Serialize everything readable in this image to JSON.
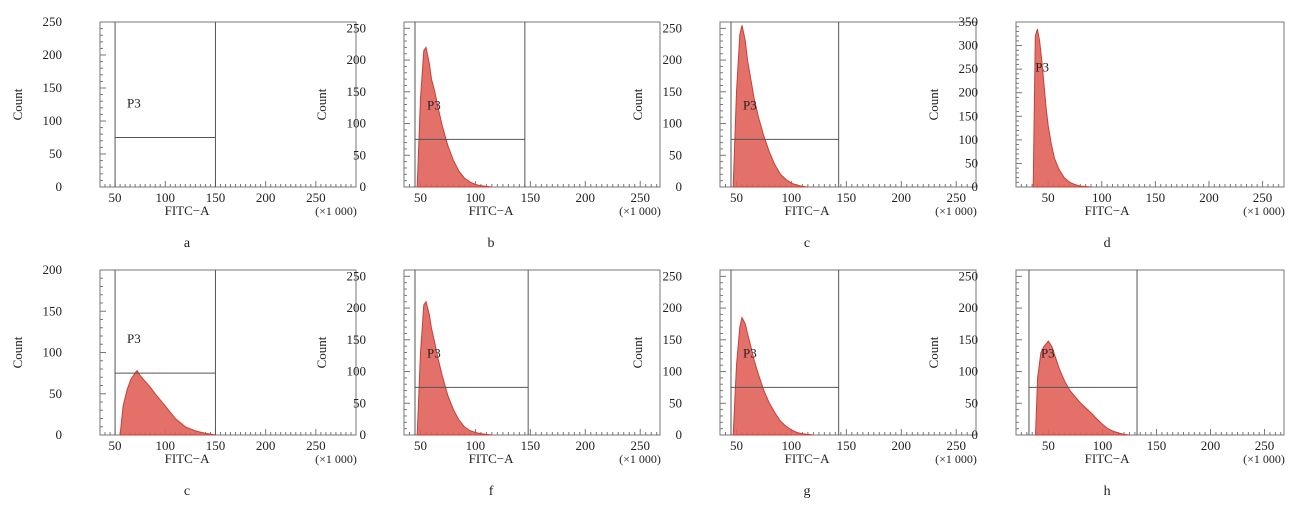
{
  "common": {
    "xlabel": "FITC−A",
    "ylabel": "Count",
    "x_unit": "(×1 000)",
    "gate_label": "P3",
    "fill_color": "#e0625a",
    "line_color": "#c24238",
    "axis_color": "#777777",
    "gate_color": "#555555"
  },
  "chart_data": [
    {
      "type": "area",
      "caption": "a",
      "xticks": [
        50,
        100,
        150,
        200,
        250
      ],
      "xlim": [
        35,
        290
      ],
      "yticks": [
        0,
        50,
        100,
        150,
        200,
        250
      ],
      "ylim": [
        0,
        250
      ],
      "gate": {
        "x0": 50,
        "x1": 150,
        "y": 75
      },
      "x": [],
      "y": []
    },
    {
      "type": "area",
      "caption": "b",
      "xticks": [
        50,
        100,
        150,
        200,
        250
      ],
      "xlim": [
        35,
        268
      ],
      "yticks": [
        0,
        50,
        100,
        150,
        200,
        250
      ],
      "ylim": [
        0,
        260
      ],
      "gate": {
        "x0": 45,
        "x1": 145,
        "y": 75
      },
      "x": [
        47,
        50,
        53,
        55,
        58,
        60,
        63,
        66,
        70,
        75,
        80,
        85,
        90,
        95,
        100,
        105,
        110,
        115
      ],
      "y": [
        0,
        140,
        215,
        220,
        195,
        170,
        150,
        125,
        95,
        65,
        42,
        25,
        14,
        8,
        4,
        2,
        1,
        0
      ]
    },
    {
      "type": "area",
      "caption": "c",
      "xticks": [
        50,
        100,
        150,
        200,
        250
      ],
      "xlim": [
        35,
        268
      ],
      "yticks": [
        0,
        50,
        100,
        150,
        200,
        250
      ],
      "ylim": [
        0,
        260
      ],
      "gate": {
        "x0": 45,
        "x1": 143,
        "y": 75
      },
      "x": [
        47,
        50,
        53,
        55,
        58,
        60,
        63,
        66,
        70,
        75,
        80,
        85,
        90,
        95,
        100,
        105,
        110,
        115
      ],
      "y": [
        0,
        150,
        240,
        255,
        230,
        200,
        170,
        140,
        110,
        80,
        55,
        35,
        20,
        12,
        6,
        3,
        1,
        0
      ]
    },
    {
      "type": "area",
      "caption": "d",
      "xticks": [
        50,
        100,
        150,
        200,
        250
      ],
      "xlim": [
        20,
        270
      ],
      "yticks": [
        0,
        50,
        100,
        150,
        200,
        250,
        300,
        350
      ],
      "ylim": [
        0,
        350
      ],
      "gate": null,
      "x": [
        36,
        38,
        40,
        42,
        44,
        46,
        48,
        50,
        53,
        56,
        60,
        65,
        70,
        75,
        80,
        85,
        90
      ],
      "y": [
        0,
        320,
        335,
        310,
        270,
        220,
        170,
        130,
        90,
        60,
        38,
        20,
        10,
        5,
        2,
        1,
        0
      ]
    },
    {
      "type": "area",
      "caption": "c",
      "xticks": [
        50,
        100,
        150,
        200,
        250
      ],
      "xlim": [
        35,
        290
      ],
      "yticks": [
        0,
        50,
        100,
        150,
        200
      ],
      "ylim": [
        0,
        200
      ],
      "gate": {
        "x0": 50,
        "x1": 150,
        "y": 75
      },
      "x": [
        55,
        58,
        62,
        66,
        70,
        72,
        75,
        80,
        85,
        90,
        100,
        110,
        120,
        130,
        140,
        150
      ],
      "y": [
        0,
        35,
        55,
        68,
        75,
        78,
        72,
        65,
        58,
        50,
        35,
        20,
        10,
        5,
        2,
        0
      ]
    },
    {
      "type": "area",
      "caption": "f",
      "xticks": [
        50,
        100,
        150,
        200,
        250
      ],
      "xlim": [
        35,
        268
      ],
      "yticks": [
        0,
        50,
        100,
        150,
        200,
        250
      ],
      "ylim": [
        0,
        260
      ],
      "gate": {
        "x0": 45,
        "x1": 148,
        "y": 75
      },
      "x": [
        47,
        50,
        53,
        55,
        58,
        60,
        63,
        66,
        70,
        75,
        80,
        85,
        90,
        95,
        100,
        105,
        110,
        115
      ],
      "y": [
        0,
        130,
        205,
        210,
        190,
        168,
        145,
        120,
        92,
        62,
        40,
        24,
        13,
        7,
        4,
        2,
        1,
        0
      ]
    },
    {
      "type": "area",
      "caption": "g",
      "xticks": [
        50,
        100,
        150,
        200,
        250
      ],
      "xlim": [
        35,
        268
      ],
      "yticks": [
        0,
        50,
        100,
        150,
        200,
        250
      ],
      "ylim": [
        0,
        260
      ],
      "gate": {
        "x0": 45,
        "x1": 143,
        "y": 75
      },
      "x": [
        47,
        50,
        53,
        55,
        58,
        60,
        63,
        66,
        70,
        75,
        80,
        85,
        90,
        95,
        100,
        105,
        110,
        115,
        120
      ],
      "y": [
        0,
        110,
        170,
        185,
        175,
        160,
        140,
        118,
        95,
        70,
        50,
        35,
        22,
        14,
        8,
        4,
        2,
        1,
        0
      ]
    },
    {
      "type": "area",
      "caption": "h",
      "xticks": [
        50,
        100,
        150,
        200,
        250
      ],
      "xlim": [
        20,
        268
      ],
      "yticks": [
        0,
        50,
        100,
        150,
        200,
        250
      ],
      "ylim": [
        0,
        260
      ],
      "gate": {
        "x0": 32,
        "x1": 132,
        "y": 75
      },
      "x": [
        38,
        40,
        43,
        46,
        50,
        53,
        56,
        60,
        65,
        70,
        75,
        80,
        85,
        90,
        95,
        100,
        105,
        110,
        115,
        120,
        125
      ],
      "y": [
        0,
        90,
        130,
        140,
        148,
        140,
        125,
        105,
        85,
        70,
        60,
        50,
        42,
        34,
        25,
        17,
        10,
        6,
        3,
        1,
        0
      ]
    }
  ]
}
